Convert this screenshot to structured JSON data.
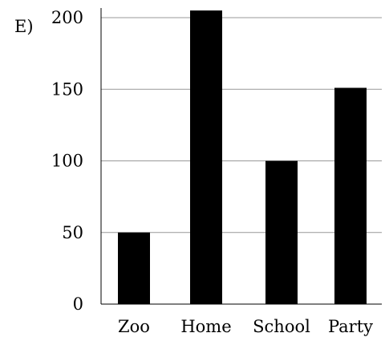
{
  "panel_label": "E)",
  "colors": {
    "bar": "#000000",
    "axis": "#000000",
    "grid": "#999999",
    "background": "#ffffff"
  },
  "chart_data": {
    "type": "bar",
    "categories": [
      "Zoo",
      "Home",
      "School",
      "Party"
    ],
    "values": [
      50,
      205,
      100,
      151
    ],
    "title": "",
    "xlabel": "",
    "ylabel": "",
    "ylim": [
      0,
      200
    ],
    "yticks": [
      0,
      50,
      100,
      150,
      200
    ],
    "grid": true,
    "legend": "none"
  }
}
